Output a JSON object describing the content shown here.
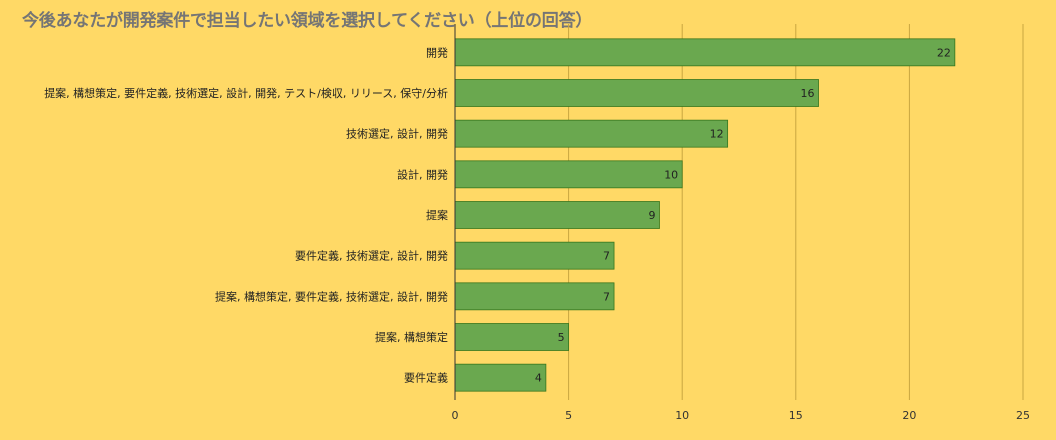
{
  "chart_data": {
    "type": "bar",
    "orientation": "horizontal",
    "title": "今後あなたが開発案件で担当したい領域を選択してください（上位の回答）",
    "xlabel": "",
    "ylabel": "",
    "categories": [
      "開発",
      "提案, 構想策定, 要件定義, 技術選定, 設計, 開発, テスト/検収, リリース, 保守/分析",
      "技術選定, 設計, 開発",
      "設計, 開発",
      "提案",
      "要件定義, 技術選定, 設計, 開発",
      "提案, 構想策定, 要件定義, 技術選定, 設計, 開発",
      "提案, 構想策定",
      "要件定義"
    ],
    "values": [
      22,
      16,
      12,
      10,
      9,
      7,
      7,
      5,
      4
    ],
    "xlim": [
      0,
      25
    ],
    "xticks": [
      "0",
      "5",
      "10",
      "15",
      "20",
      "25"
    ],
    "grid": true,
    "legend": "none",
    "colors": {
      "background": "#ffd966",
      "bar": "#6aa84f",
      "bar_border": "#38761d",
      "grid": "#c9a640",
      "title": "#757575"
    }
  }
}
